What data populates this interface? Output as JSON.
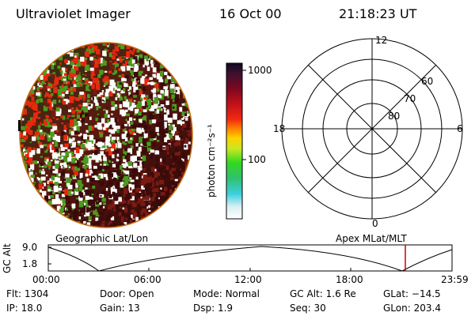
{
  "header": {
    "title": "Ultraviolet Imager",
    "date": "16 Oct 00",
    "time": "21:18:23 UT"
  },
  "colorbar": {
    "ticks": [
      "1000",
      "100"
    ],
    "label": "photon cm⁻²s⁻¹"
  },
  "polar_plot": {
    "mlt_labels": [
      "12",
      "18",
      "6",
      "0"
    ],
    "lat_labels": [
      "60",
      "70",
      "80"
    ]
  },
  "altitude_plot": {
    "ylabel": "GC Alt",
    "yticks": [
      "9.0",
      "1.8"
    ],
    "left_title": "Geographic Lat/Lon",
    "right_title": "Apex MLat/MLT",
    "xticks": [
      "00:00",
      "06:00",
      "12:00",
      "18:00",
      "23:59"
    ],
    "marker_time": "21:18"
  },
  "info": {
    "row1": [
      {
        "label": "Flt:",
        "value": "1304"
      },
      {
        "label": "Door:",
        "value": "Open"
      },
      {
        "label": "Mode:",
        "value": "Normal"
      },
      {
        "label": "GC Alt:",
        "value": "1.6 Re"
      },
      {
        "label": "GLat:",
        "value": "−14.5"
      }
    ],
    "row2": [
      {
        "label": "IP:",
        "value": "18.0"
      },
      {
        "label": "Gain:",
        "value": "13"
      },
      {
        "label": "Dsp:",
        "value": "1.9"
      },
      {
        "label": "Seq:",
        "value": "30"
      },
      {
        "label": "GLon:",
        "value": "203.4"
      }
    ]
  },
  "colors": {
    "marker": "#cc0000",
    "image_dark": "#3a0a0a",
    "image_mid": "#7a1a12",
    "green": "#4c9a1e",
    "red": "#e8280e"
  }
}
